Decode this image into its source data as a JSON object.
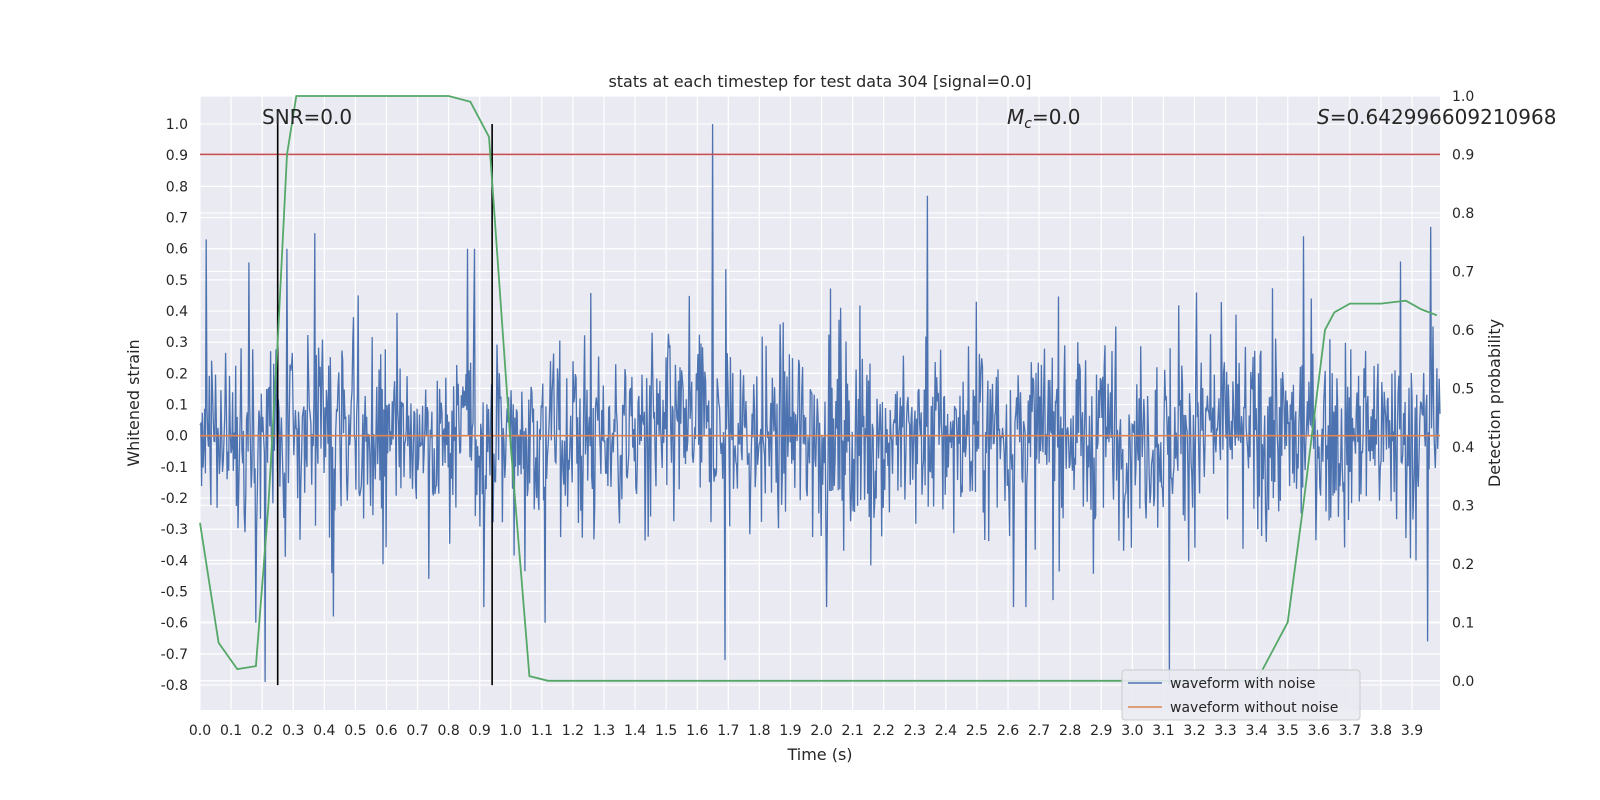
{
  "chart_data": {
    "type": "line",
    "title": "stats at each timestep for test data 304 [signal=0.0]",
    "xlabel": "Time (s)",
    "ylabel": "Whitened strain",
    "y2label": "Detection probability",
    "xlim": [
      0.0,
      3.99
    ],
    "ylim": [
      -0.88,
      1.09
    ],
    "y2lim": [
      -0.05,
      1.0
    ],
    "grid": true,
    "legend_position": "lower-right",
    "x_ticks": [
      "0.0",
      "0.1",
      "0.2",
      "0.3",
      "0.4",
      "0.5",
      "0.6",
      "0.7",
      "0.8",
      "0.9",
      "1.0",
      "1.1",
      "1.2",
      "1.3",
      "1.4",
      "1.5",
      "1.6",
      "1.7",
      "1.8",
      "1.9",
      "2.0",
      "2.1",
      "2.2",
      "2.3",
      "2.4",
      "2.5",
      "2.6",
      "2.7",
      "2.8",
      "2.9",
      "3.0",
      "3.1",
      "3.2",
      "3.3",
      "3.4",
      "3.5",
      "3.6",
      "3.7",
      "3.8",
      "3.9"
    ],
    "y_ticks": [
      "-0.8",
      "-0.7",
      "-0.6",
      "-0.5",
      "-0.4",
      "-0.3",
      "-0.2",
      "-0.1",
      "0.0",
      "0.1",
      "0.2",
      "0.3",
      "0.4",
      "0.5",
      "0.6",
      "0.7",
      "0.8",
      "0.9",
      "1.0"
    ],
    "y2_ticks": [
      "0.0",
      "0.1",
      "0.2",
      "0.3",
      "0.4",
      "0.5",
      "0.6",
      "0.7",
      "0.8",
      "0.9",
      "1.0"
    ],
    "annotations": {
      "snr": "SNR=0.0",
      "mc_symbol": "M",
      "mc_sub": "c",
      "mc_value": "=0.0",
      "s_symbol": "S",
      "s_value": "=0.642996609210968"
    },
    "series": [
      {
        "name": "waveform with noise",
        "color": "#4c72b0",
        "description_points": "noisy strain between about -0.8 and 1.0, peak 1.0 near 1.65 s"
      },
      {
        "name": "waveform without noise",
        "color": "#dd8452",
        "values_constant": 0.0
      }
    ],
    "noise_peaks": [
      {
        "x": 0.02,
        "y": 0.63
      },
      {
        "x": 0.18,
        "y": -0.6
      },
      {
        "x": 0.21,
        "y": -0.79
      },
      {
        "x": 0.28,
        "y": 0.6
      },
      {
        "x": 0.37,
        "y": 0.65
      },
      {
        "x": 0.43,
        "y": -0.58
      },
      {
        "x": 0.86,
        "y": 0.6
      },
      {
        "x": 1.11,
        "y": -0.6
      },
      {
        "x": 1.65,
        "y": 1.0
      },
      {
        "x": 1.69,
        "y": -0.72
      },
      {
        "x": 2.34,
        "y": 0.77
      },
      {
        "x": 3.12,
        "y": -0.8
      },
      {
        "x": 3.55,
        "y": 0.64
      },
      {
        "x": 3.96,
        "y": 0.67
      },
      {
        "x": 3.95,
        "y": -0.66
      }
    ],
    "detection_probability": {
      "color": "#55a868",
      "x": [
        0.0,
        0.06,
        0.12,
        0.18,
        0.22,
        0.25,
        0.28,
        0.31,
        0.5,
        0.8,
        0.87,
        0.93,
        1.0,
        1.06,
        1.12,
        2.0,
        3.0,
        3.3,
        3.4,
        3.45,
        3.5,
        3.55,
        3.58,
        3.62,
        3.65,
        3.7,
        3.8,
        3.88,
        3.93,
        3.98
      ],
      "y": [
        0.27,
        0.065,
        0.02,
        0.025,
        0.3,
        0.58,
        0.9,
        1.0,
        1.0,
        1.0,
        0.99,
        0.93,
        0.4,
        0.008,
        0.0,
        0.0,
        0.0,
        0.0,
        0.0,
        0.05,
        0.1,
        0.3,
        0.43,
        0.6,
        0.63,
        0.645,
        0.645,
        0.65,
        0.635,
        0.625
      ]
    },
    "threshold": {
      "y2": 0.9,
      "color": "#c44e52"
    },
    "markers_x": [
      0.25,
      0.94
    ]
  }
}
